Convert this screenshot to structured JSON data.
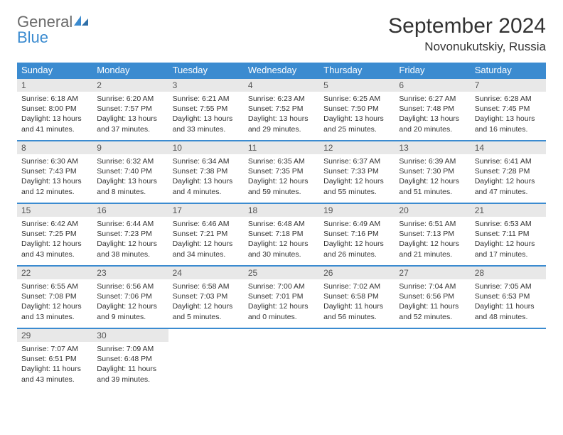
{
  "brand": {
    "word1": "General",
    "word2": "Blue"
  },
  "title": "September 2024",
  "location": "Novonukutskiy, Russia",
  "header_color": "#3b8bd0",
  "daynum_bg": "#e8e8e8",
  "weekdays": [
    "Sunday",
    "Monday",
    "Tuesday",
    "Wednesday",
    "Thursday",
    "Friday",
    "Saturday"
  ],
  "weeks": [
    [
      {
        "n": "1",
        "sr": "6:18 AM",
        "ss": "8:00 PM",
        "dl": "13 hours and 41 minutes."
      },
      {
        "n": "2",
        "sr": "6:20 AM",
        "ss": "7:57 PM",
        "dl": "13 hours and 37 minutes."
      },
      {
        "n": "3",
        "sr": "6:21 AM",
        "ss": "7:55 PM",
        "dl": "13 hours and 33 minutes."
      },
      {
        "n": "4",
        "sr": "6:23 AM",
        "ss": "7:52 PM",
        "dl": "13 hours and 29 minutes."
      },
      {
        "n": "5",
        "sr": "6:25 AM",
        "ss": "7:50 PM",
        "dl": "13 hours and 25 minutes."
      },
      {
        "n": "6",
        "sr": "6:27 AM",
        "ss": "7:48 PM",
        "dl": "13 hours and 20 minutes."
      },
      {
        "n": "7",
        "sr": "6:28 AM",
        "ss": "7:45 PM",
        "dl": "13 hours and 16 minutes."
      }
    ],
    [
      {
        "n": "8",
        "sr": "6:30 AM",
        "ss": "7:43 PM",
        "dl": "13 hours and 12 minutes."
      },
      {
        "n": "9",
        "sr": "6:32 AM",
        "ss": "7:40 PM",
        "dl": "13 hours and 8 minutes."
      },
      {
        "n": "10",
        "sr": "6:34 AM",
        "ss": "7:38 PM",
        "dl": "13 hours and 4 minutes."
      },
      {
        "n": "11",
        "sr": "6:35 AM",
        "ss": "7:35 PM",
        "dl": "12 hours and 59 minutes."
      },
      {
        "n": "12",
        "sr": "6:37 AM",
        "ss": "7:33 PM",
        "dl": "12 hours and 55 minutes."
      },
      {
        "n": "13",
        "sr": "6:39 AM",
        "ss": "7:30 PM",
        "dl": "12 hours and 51 minutes."
      },
      {
        "n": "14",
        "sr": "6:41 AM",
        "ss": "7:28 PM",
        "dl": "12 hours and 47 minutes."
      }
    ],
    [
      {
        "n": "15",
        "sr": "6:42 AM",
        "ss": "7:25 PM",
        "dl": "12 hours and 43 minutes."
      },
      {
        "n": "16",
        "sr": "6:44 AM",
        "ss": "7:23 PM",
        "dl": "12 hours and 38 minutes."
      },
      {
        "n": "17",
        "sr": "6:46 AM",
        "ss": "7:21 PM",
        "dl": "12 hours and 34 minutes."
      },
      {
        "n": "18",
        "sr": "6:48 AM",
        "ss": "7:18 PM",
        "dl": "12 hours and 30 minutes."
      },
      {
        "n": "19",
        "sr": "6:49 AM",
        "ss": "7:16 PM",
        "dl": "12 hours and 26 minutes."
      },
      {
        "n": "20",
        "sr": "6:51 AM",
        "ss": "7:13 PM",
        "dl": "12 hours and 21 minutes."
      },
      {
        "n": "21",
        "sr": "6:53 AM",
        "ss": "7:11 PM",
        "dl": "12 hours and 17 minutes."
      }
    ],
    [
      {
        "n": "22",
        "sr": "6:55 AM",
        "ss": "7:08 PM",
        "dl": "12 hours and 13 minutes."
      },
      {
        "n": "23",
        "sr": "6:56 AM",
        "ss": "7:06 PM",
        "dl": "12 hours and 9 minutes."
      },
      {
        "n": "24",
        "sr": "6:58 AM",
        "ss": "7:03 PM",
        "dl": "12 hours and 5 minutes."
      },
      {
        "n": "25",
        "sr": "7:00 AM",
        "ss": "7:01 PM",
        "dl": "12 hours and 0 minutes."
      },
      {
        "n": "26",
        "sr": "7:02 AM",
        "ss": "6:58 PM",
        "dl": "11 hours and 56 minutes."
      },
      {
        "n": "27",
        "sr": "7:04 AM",
        "ss": "6:56 PM",
        "dl": "11 hours and 52 minutes."
      },
      {
        "n": "28",
        "sr": "7:05 AM",
        "ss": "6:53 PM",
        "dl": "11 hours and 48 minutes."
      }
    ],
    [
      {
        "n": "29",
        "sr": "7:07 AM",
        "ss": "6:51 PM",
        "dl": "11 hours and 43 minutes."
      },
      {
        "n": "30",
        "sr": "7:09 AM",
        "ss": "6:48 PM",
        "dl": "11 hours and 39 minutes."
      },
      null,
      null,
      null,
      null,
      null
    ]
  ],
  "labels": {
    "sunrise": "Sunrise:",
    "sunset": "Sunset:",
    "daylight": "Daylight:"
  }
}
